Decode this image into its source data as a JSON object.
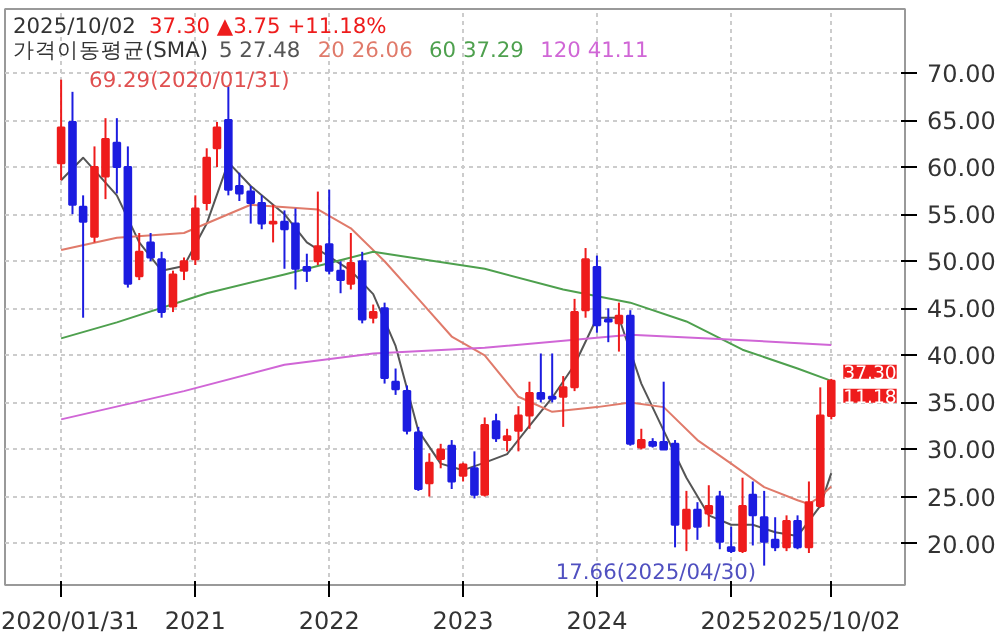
{
  "chart_data": {
    "type": "candlestick",
    "title": "2025/10/02",
    "subtitle": "37.30 ▲3.75 +11.18%",
    "legend_title": "가격이동평균(SMA)",
    "x": [
      "2020-01",
      "2020-02",
      "2020-03",
      "2020-04",
      "2020-05",
      "2020-06",
      "2020-07",
      "2020-08",
      "2020-09",
      "2020-10",
      "2020-11",
      "2020-12",
      "2021-01",
      "2021-02",
      "2021-03",
      "2021-04",
      "2021-05",
      "2021-06",
      "2021-07",
      "2021-08",
      "2021-09",
      "2021-10",
      "2021-11",
      "2021-12",
      "2022-01",
      "2022-02",
      "2022-03",
      "2022-04",
      "2022-05",
      "2022-06",
      "2022-07",
      "2022-08",
      "2022-09",
      "2022-10",
      "2022-11",
      "2022-12",
      "2023-01",
      "2023-02",
      "2023-03",
      "2023-04",
      "2023-05",
      "2023-06",
      "2023-07",
      "2023-08",
      "2023-09",
      "2023-10",
      "2023-11",
      "2023-12",
      "2024-01",
      "2024-02",
      "2024-03",
      "2024-04",
      "2024-05",
      "2024-06",
      "2024-07",
      "2024-08",
      "2024-09",
      "2024-10",
      "2024-11",
      "2024-12",
      "2025-01",
      "2025-02",
      "2025-03",
      "2025-04",
      "2025-05",
      "2025-06",
      "2025-07",
      "2025-08",
      "2025-09",
      "2025-10"
    ],
    "ohlc": [
      [
        60.4,
        69.29,
        58.6,
        64.2
      ],
      [
        64.8,
        68,
        55,
        56
      ],
      [
        55.8,
        57,
        44,
        54.2
      ],
      [
        52.6,
        62.2,
        52,
        60
      ],
      [
        59,
        65.2,
        56.6,
        63
      ],
      [
        62.6,
        65.2,
        57.2,
        60
      ],
      [
        60,
        62.2,
        47.2,
        47.6
      ],
      [
        48.4,
        53,
        48,
        51
      ],
      [
        52,
        53,
        50,
        50.4
      ],
      [
        50.2,
        51,
        44,
        44.6
      ],
      [
        45.2,
        49,
        44.6,
        48.6
      ],
      [
        49,
        50.4,
        48,
        50
      ],
      [
        50.2,
        57,
        49.6,
        55.6
      ],
      [
        56.2,
        62,
        55.4,
        61
      ],
      [
        62,
        64.8,
        60,
        64.2
      ],
      [
        65,
        68.6,
        57,
        57.6
      ],
      [
        58,
        59.4,
        56.4,
        57.2
      ],
      [
        57.4,
        58,
        54,
        56.2
      ],
      [
        56.2,
        57,
        53.4,
        54
      ],
      [
        54,
        56,
        52,
        54.2
      ],
      [
        54.2,
        55.4,
        49.2,
        53.4
      ],
      [
        54,
        55.6,
        47,
        49.2
      ],
      [
        49.4,
        50.8,
        47.8,
        49
      ],
      [
        50,
        57.4,
        49.6,
        51.6
      ],
      [
        51.8,
        57.6,
        48.6,
        49
      ],
      [
        49,
        50,
        46.6,
        48
      ],
      [
        47.6,
        53,
        47,
        49.8
      ],
      [
        50,
        51,
        43.4,
        43.8
      ],
      [
        44,
        45.4,
        43.4,
        44.6
      ],
      [
        45,
        45.6,
        37,
        37.6
      ],
      [
        37.2,
        38.6,
        35.8,
        36.4
      ],
      [
        36.2,
        36.8,
        31.6,
        32
      ],
      [
        31.8,
        32.4,
        25.6,
        25.8
      ],
      [
        26.4,
        29.6,
        25,
        28.6
      ],
      [
        29,
        30.6,
        28,
        30
      ],
      [
        30.4,
        31,
        25.8,
        26.6
      ],
      [
        27.2,
        28.6,
        26.6,
        28.4
      ],
      [
        28,
        29.8,
        24.8,
        25.2
      ],
      [
        25.2,
        33.4,
        25,
        32.6
      ],
      [
        33,
        33.8,
        30.8,
        31.2
      ],
      [
        31,
        32.2,
        29.8,
        31.4
      ],
      [
        32,
        34.6,
        29.8,
        33.6
      ],
      [
        33.6,
        37.2,
        32.2,
        36
      ],
      [
        36,
        40.2,
        35,
        35.4
      ],
      [
        35.6,
        40.2,
        35,
        35.4
      ],
      [
        35.6,
        37.8,
        32.4,
        36.6
      ],
      [
        36.6,
        46,
        36.2,
        44.6
      ],
      [
        44.8,
        51.4,
        44,
        50.2
      ],
      [
        49.4,
        50.6,
        42.4,
        43.2
      ],
      [
        43.8,
        45,
        41.4,
        43.6
      ],
      [
        43.4,
        45.6,
        40.4,
        44.2
      ],
      [
        44.2,
        44.8,
        30.4,
        30.6
      ],
      [
        30.2,
        32.2,
        30,
        31
      ],
      [
        30.8,
        31.2,
        30.2,
        30.4
      ],
      [
        30.8,
        37.2,
        30,
        30
      ],
      [
        30.6,
        31,
        19.6,
        22
      ],
      [
        21.6,
        25.6,
        19.2,
        23.6
      ],
      [
        23.6,
        24.4,
        20.4,
        21.8
      ],
      [
        23.2,
        26.2,
        21.8,
        24
      ],
      [
        25,
        25.6,
        19.4,
        20.2
      ],
      [
        19.6,
        21.8,
        19,
        19.2
      ],
      [
        19.2,
        27,
        19,
        24
      ],
      [
        25.2,
        26.6,
        19.8,
        23
      ],
      [
        22.8,
        25.6,
        17.66,
        20.2
      ],
      [
        20.4,
        22.8,
        19.2,
        19.6
      ],
      [
        19.6,
        23,
        19.2,
        22.4
      ],
      [
        22.4,
        23,
        19.4,
        19.6
      ],
      [
        19.6,
        26.6,
        19,
        24.4
      ],
      [
        24,
        36.6,
        23.8,
        33.6
      ],
      [
        33.55,
        37.5,
        33.2,
        37.3
      ]
    ],
    "colors": [
      "#ee1c1c",
      "#1c1ce0",
      "#1c1ce0",
      "#ee1c1c",
      "#ee1c1c",
      "#1c1ce0",
      "#1c1ce0",
      "#ee1c1c",
      "#1c1ce0",
      "#1c1ce0",
      "#ee1c1c",
      "#ee1c1c",
      "#ee1c1c",
      "#ee1c1c",
      "#ee1c1c",
      "#1c1ce0",
      "#1c1ce0",
      "#1c1ce0",
      "#1c1ce0",
      "#ee1c1c",
      "#1c1ce0",
      "#1c1ce0",
      "#1c1ce0",
      "#ee1c1c",
      "#1c1ce0",
      "#1c1ce0",
      "#ee1c1c",
      "#1c1ce0",
      "#ee1c1c",
      "#1c1ce0",
      "#1c1ce0",
      "#1c1ce0",
      "#1c1ce0",
      "#ee1c1c",
      "#ee1c1c",
      "#1c1ce0",
      "#ee1c1c",
      "#1c1ce0",
      "#ee1c1c",
      "#1c1ce0",
      "#ee1c1c",
      "#ee1c1c",
      "#ee1c1c",
      "#1c1ce0",
      "#1c1ce0",
      "#ee1c1c",
      "#ee1c1c",
      "#ee1c1c",
      "#1c1ce0",
      "#1c1ce0",
      "#ee1c1c",
      "#1c1ce0",
      "#ee1c1c",
      "#1c1ce0",
      "#1c1ce0",
      "#1c1ce0",
      "#ee1c1c",
      "#1c1ce0",
      "#ee1c1c",
      "#1c1ce0",
      "#1c1ce0",
      "#ee1c1c",
      "#1c1ce0",
      "#1c1ce0",
      "#1c1ce0",
      "#ee1c1c",
      "#1c1ce0",
      "#ee1c1c",
      "#ee1c1c",
      "#ee1c1c"
    ],
    "series": [
      {
        "type": "line",
        "name": "5 27.48",
        "color": "#555555",
        "x": [
          "2020-01",
          "2020-03",
          "2020-06",
          "2020-08",
          "2020-10",
          "2020-12",
          "2021-02",
          "2021-04",
          "2021-06",
          "2021-09",
          "2021-11",
          "2022-01",
          "2022-03",
          "2022-05",
          "2022-07",
          "2022-09",
          "2022-11",
          "2023-01",
          "2023-03",
          "2023-05",
          "2023-07",
          "2023-09",
          "2023-11",
          "2024-01",
          "2024-03",
          "2024-05",
          "2024-07",
          "2024-09",
          "2024-11",
          "2025-01",
          "2025-03",
          "2025-05",
          "2025-07",
          "2025-09",
          "2025-10"
        ],
        "values": [
          58.6,
          61,
          57,
          52,
          49,
          49.5,
          54,
          60.5,
          58,
          55,
          52,
          50.5,
          49,
          46.5,
          41,
          32,
          28.5,
          27.8,
          28.6,
          29.5,
          32.5,
          35.5,
          39,
          44,
          44,
          37,
          32,
          27,
          23,
          22,
          22,
          21.2,
          20.8,
          24,
          27.48
        ]
      },
      {
        "type": "line",
        "name": "20 26.06",
        "color": "#e07a6a",
        "x": [
          "2020-01",
          "2020-06",
          "2020-12",
          "2021-06",
          "2021-12",
          "2022-03",
          "2022-06",
          "2022-09",
          "2022-12",
          "2023-03",
          "2023-06",
          "2023-09",
          "2024-01",
          "2024-04",
          "2024-07",
          "2024-10",
          "2025-01",
          "2025-04",
          "2025-07",
          "2025-08",
          "2025-09",
          "2025-10"
        ],
        "values": [
          51.2,
          52.5,
          53,
          56,
          55.5,
          53.5,
          50,
          46,
          42,
          40,
          35.6,
          34,
          34.5,
          35,
          34.5,
          31,
          28.5,
          26,
          24.6,
          24.2,
          25,
          26.06
        ]
      },
      {
        "type": "line",
        "name": "60 37.29",
        "color": "#4ea04e",
        "x": [
          "2020-01",
          "2020-06",
          "2021-02",
          "2021-09",
          "2022-05",
          "2023-03",
          "2023-10",
          "2024-04",
          "2024-09",
          "2025-02",
          "2025-07",
          "2025-10"
        ],
        "values": [
          41.8,
          43.5,
          46.6,
          48.6,
          51,
          49.2,
          47,
          45.6,
          43.6,
          40.6,
          38.6,
          37.29
        ]
      },
      {
        "type": "line",
        "name": "120 41.11",
        "color": "#d066d6",
        "x": [
          "2020-01",
          "2020-12",
          "2021-09",
          "2022-05",
          "2023-03",
          "2024-04",
          "2024-11",
          "2025-10"
        ],
        "values": [
          33.2,
          36.2,
          39,
          40.2,
          40.8,
          42.2,
          41.8,
          41.11
        ]
      }
    ],
    "annotations": [
      {
        "text": "69.29(2020/01/31)",
        "x": "2020-01",
        "y": 69.29
      },
      {
        "text": "17.66(2025/04/30)",
        "x": "2025-04",
        "y": 17.66
      },
      {
        "text": "37.30",
        "x": "2025-10",
        "y": 37.3
      },
      {
        "text": "11.18",
        "x": "2025-10",
        "y": 37.3
      }
    ],
    "xlim": [
      "2019-08-01",
      "2026-04-20"
    ],
    "xticks": [
      {
        "value": "2020-01",
        "label": "2020/01/31"
      },
      {
        "value": "2021-01",
        "label": "2021"
      },
      {
        "value": "2022-01",
        "label": "2022"
      },
      {
        "value": "2023-01",
        "label": "2023"
      },
      {
        "value": "2024-01",
        "label": "2024"
      },
      {
        "value": "2025-01",
        "label": "2025"
      },
      {
        "value": "2025-10",
        "label": "2025/10/02"
      }
    ],
    "ylim": [
      15.6,
      76.8
    ],
    "yticks": [
      {
        "value": 20,
        "label": "20.00"
      },
      {
        "value": 25,
        "label": "25.00"
      },
      {
        "value": 30,
        "label": "30.00"
      },
      {
        "value": 35,
        "label": "35.00"
      },
      {
        "value": 40,
        "label": "40.00"
      },
      {
        "value": 45,
        "label": "45.00"
      },
      {
        "value": 50,
        "label": "50.00"
      },
      {
        "value": 55,
        "label": "55.00"
      },
      {
        "value": 60,
        "label": "60.00"
      },
      {
        "value": 65,
        "label": "65.00"
      },
      {
        "value": 70,
        "label": "70.00"
      }
    ],
    "grid": true,
    "legend": "top left"
  }
}
